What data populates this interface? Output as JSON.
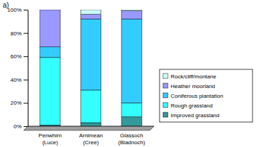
{
  "chart_data": {
    "type": "bar",
    "stacked": true,
    "annotation": "a)",
    "categories": [
      "Penwhirn (Luce)",
      "Arnimean (Cree)",
      "Glassoch (Bladnoch)"
    ],
    "series": [
      {
        "name": "Improved grassland",
        "color": "#339999",
        "values": [
          1,
          3,
          8
        ]
      },
      {
        "name": "Rough grassland",
        "color": "#33ffff",
        "values": [
          58,
          28,
          12
        ]
      },
      {
        "name": "Coniferous plantation",
        "color": "#33ccff",
        "values": [
          9,
          61,
          72
        ]
      },
      {
        "name": "Heather moorland",
        "color": "#9999ff",
        "values": [
          32,
          4,
          7
        ]
      },
      {
        "name": "Rock/cliff/montane",
        "color": "#ccffff",
        "values": [
          0,
          4,
          1
        ]
      }
    ],
    "ylim": [
      0,
      100
    ],
    "yticks": [
      {
        "value": 0,
        "label": "0%"
      },
      {
        "value": 20,
        "label": "20%"
      },
      {
        "value": 40,
        "label": "40%"
      },
      {
        "value": 60,
        "label": "60%"
      },
      {
        "value": 80,
        "label": "80%"
      },
      {
        "value": 100,
        "label": "100%"
      }
    ],
    "grid": false,
    "legend": "right"
  }
}
